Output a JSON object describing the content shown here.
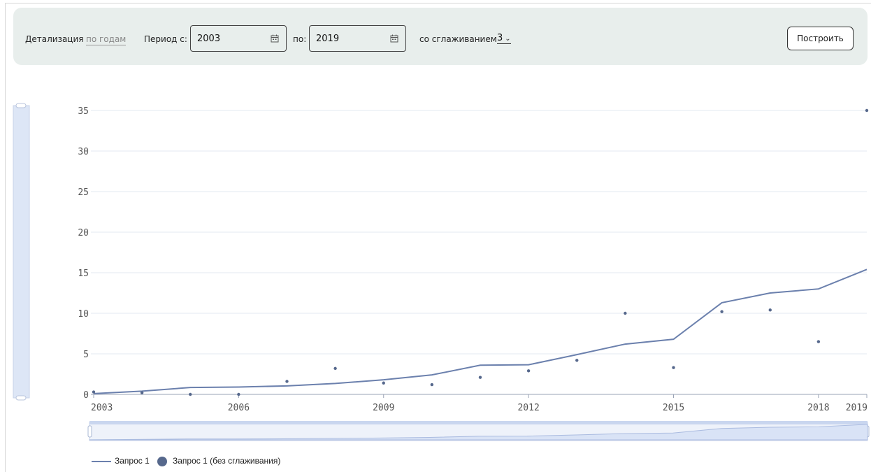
{
  "toolbar": {
    "detail_label": "Детализация",
    "detail_value": "по годам",
    "period_from_label": "Период с:",
    "period_from_value": "2003",
    "period_to_label": "по:",
    "period_to_value": "2019",
    "smoothing_label": "со сглаживанием",
    "smoothing_value": "3",
    "build_label": "Построить"
  },
  "icons": {
    "calendar": "calendar-icon",
    "chevron": "chevron-down-icon"
  },
  "colors": {
    "series": "#6b80ad",
    "dots": "#56688c",
    "toolbar_bg": "#e8eeec",
    "zoom_fill": "#d9e3f6"
  },
  "legend": {
    "series1": "Запрос 1",
    "series2": "Запрос 1 (без сглаживания)"
  },
  "chart_data": {
    "type": "line",
    "x": [
      2003,
      2004,
      2005,
      2006,
      2007,
      2008,
      2009,
      2010,
      2011,
      2012,
      2013,
      2014,
      2015,
      2016,
      2017,
      2018,
      2019
    ],
    "x_ticks": [
      "2003",
      "2006",
      "2009",
      "2012",
      "2015",
      "2018",
      "2019"
    ],
    "y_ticks": [
      "0",
      "5",
      "10",
      "15",
      "20",
      "25",
      "30",
      "35"
    ],
    "ylim": [
      0,
      35
    ],
    "xlim": [
      2003,
      2019
    ],
    "grid": true,
    "legend_position": "bottom-left",
    "series": [
      {
        "name": "Запрос 1",
        "kind": "line",
        "values": [
          0.1,
          0.4,
          0.85,
          0.9,
          1.05,
          1.35,
          1.8,
          2.4,
          3.6,
          3.65,
          4.9,
          6.2,
          6.8,
          11.3,
          12.5,
          13.0,
          15.4
        ]
      },
      {
        "name": "Запрос 1 (без сглаживания)",
        "kind": "scatter",
        "values": [
          0.3,
          0.2,
          0.0,
          0.0,
          1.6,
          3.2,
          1.4,
          1.2,
          2.1,
          2.9,
          4.2,
          10.0,
          3.3,
          10.2,
          10.4,
          6.5,
          35.0
        ]
      }
    ]
  }
}
